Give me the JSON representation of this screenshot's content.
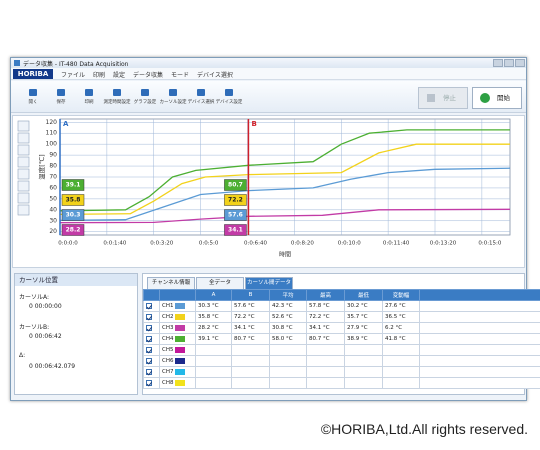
{
  "window": {
    "title": "データ収集 - IT-480 Data Acquisition",
    "logo": "HORIBA",
    "menu": [
      "ファイル",
      "印刷",
      "設定",
      "データ収集",
      "モード",
      "デバイス選択"
    ],
    "toolbar": [
      "開く",
      "保存",
      "印刷",
      "測定時間設定",
      "グラフ設定",
      "カーソル設定",
      "デバイス選択",
      "デバイス設定"
    ],
    "buttons": [
      "停止",
      "開始"
    ]
  },
  "chart": {
    "type": "line",
    "y_label": "温度[℃]",
    "x_label": "時間",
    "xlim": [
      0,
      960
    ],
    "ylim": [
      17,
      123
    ],
    "xticks": [
      {
        "value": 0,
        "label": "0:0:0:0"
      },
      {
        "value": 100,
        "label": "0:0:1:40"
      },
      {
        "value": 200,
        "label": "0:0:3:20"
      },
      {
        "value": 300,
        "label": "0:0:5:0"
      },
      {
        "value": 400,
        "label": "0:0:6:40"
      },
      {
        "value": 500,
        "label": "0:0:8:20"
      },
      {
        "value": 600,
        "label": "0:0:10:0"
      },
      {
        "value": 700,
        "label": "0:0:11:40"
      },
      {
        "value": 800,
        "label": "0:0:13:20"
      },
      {
        "value": 900,
        "label": "0:0:15:0"
      }
    ],
    "yticks": [
      20,
      30,
      40,
      50,
      60,
      70,
      80,
      90,
      100,
      110,
      120
    ],
    "grid": true,
    "series": [
      {
        "name": "CH1",
        "color": "#5b9bd5",
        "x": [
          0,
          140,
          230,
          300,
          402,
          540,
          620,
          700,
          800,
          960
        ],
        "values": [
          30.3,
          31,
          44,
          54,
          57.6,
          60,
          68,
          74,
          77,
          78
        ]
      },
      {
        "name": "CH2",
        "color": "#f2d21b",
        "x": [
          0,
          150,
          200,
          260,
          310,
          402,
          600,
          680,
          760,
          960
        ],
        "values": [
          35.8,
          36.5,
          48,
          64,
          70,
          72.2,
          74,
          92,
          100,
          100
        ]
      },
      {
        "name": "CH3",
        "color": "#c23ba6",
        "x": [
          0,
          200,
          300,
          402,
          560,
          680,
          960
        ],
        "values": [
          28.2,
          28.5,
          31.5,
          34.1,
          35,
          40,
          40.5
        ]
      },
      {
        "name": "CH4",
        "color": "#4caf32",
        "x": [
          0,
          140,
          190,
          240,
          290,
          402,
          540,
          600,
          660,
          740,
          960
        ],
        "values": [
          39.1,
          40,
          52,
          70,
          76,
          80.7,
          84,
          100,
          110,
          113,
          113
        ]
      }
    ],
    "cursors": [
      {
        "label": "A",
        "color": "#2f6fc4",
        "x": 0,
        "values": [
          30.3,
          35.8,
          28.2,
          39.1
        ]
      },
      {
        "label": "B",
        "color": "#d0202a",
        "x": 402,
        "values": [
          57.6,
          72.2,
          34.1,
          80.7
        ]
      }
    ]
  },
  "cursor_panel": {
    "title": "カーソル位置",
    "rows": [
      {
        "label": "カーソルA:",
        "value": "0 00:00:00"
      },
      {
        "label": "カーソルB:",
        "value": "0 00:06:42"
      },
      {
        "label": "Δ:",
        "value": "0 00:06:42.079"
      }
    ]
  },
  "data_panel": {
    "tabs": [
      "チャンネル情報",
      "全データ",
      "カーソル間データ"
    ],
    "active_tab": 2,
    "columns": [
      "A",
      "B",
      "平均",
      "最高",
      "最低",
      "変動幅"
    ],
    "rows": [
      {
        "channel": "CH1",
        "color": "#5b9bd5",
        "checked": true,
        "cells": [
          "30.3 °C",
          "57.6 °C",
          "42.3 °C",
          "57.8 °C",
          "30.2 °C",
          "27.6 °C"
        ]
      },
      {
        "channel": "CH2",
        "color": "#f2d21b",
        "checked": true,
        "cells": [
          "35.8 °C",
          "72.2 °C",
          "52.6 °C",
          "72.2 °C",
          "35.7 °C",
          "36.5 °C"
        ]
      },
      {
        "channel": "CH3",
        "color": "#c23ba6",
        "checked": true,
        "cells": [
          "28.2 °C",
          "34.1 °C",
          "30.8 °C",
          "34.1 °C",
          "27.9 °C",
          "6.2 °C"
        ]
      },
      {
        "channel": "CH4",
        "color": "#4caf32",
        "checked": true,
        "cells": [
          "39.1 °C",
          "80.7 °C",
          "58.0 °C",
          "80.7 °C",
          "38.9 °C",
          "41.8 °C"
        ]
      },
      {
        "channel": "CH5",
        "color": "#c2189a",
        "checked": true,
        "cells": []
      },
      {
        "channel": "CH6",
        "color": "#1c2a8c",
        "checked": true,
        "cells": []
      },
      {
        "channel": "CH7",
        "color": "#22b8e8",
        "checked": true,
        "cells": []
      },
      {
        "channel": "CH8",
        "color": "#f2e21b",
        "checked": true,
        "cells": []
      }
    ]
  },
  "footer": "©HORIBA,Ltd.All rights reserved."
}
